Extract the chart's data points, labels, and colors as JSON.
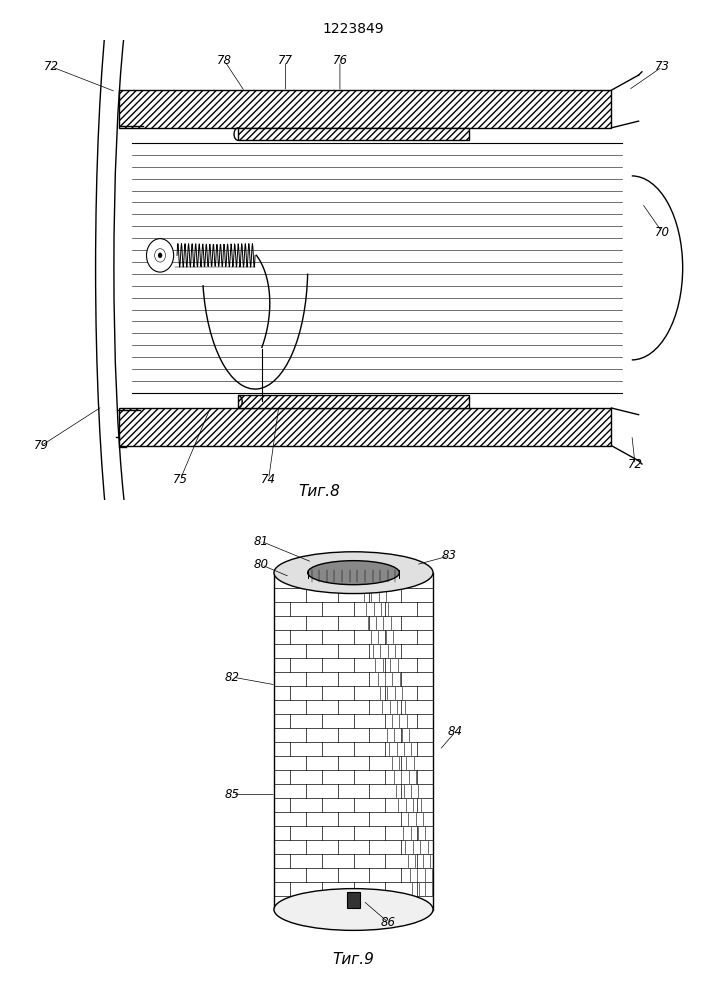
{
  "title": "1223849",
  "fig8_caption": "Τиг.8",
  "fig9_caption": "Τиг.9",
  "bg_color": "#ffffff"
}
